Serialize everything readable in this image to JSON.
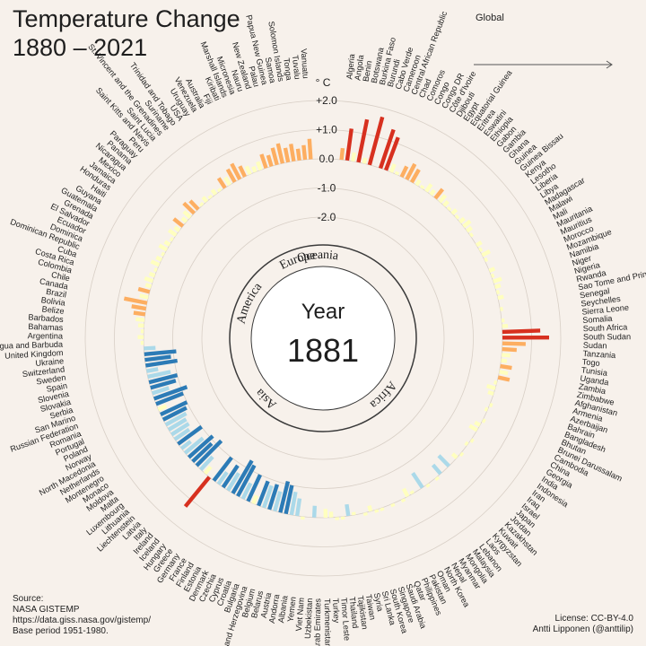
{
  "title_line1": "Temperature Change",
  "title_line2": "1880 – 2021",
  "global_label": "Global",
  "unit_label": "° C",
  "scale_ticks": [
    "+2.0",
    "+1.0",
    "0.0",
    "-1.0",
    "-2.0"
  ],
  "center_label": "Year",
  "center_year": "1881",
  "continents": [
    "Oceania",
    "Africa",
    "Asia",
    "Europe",
    "America"
  ],
  "source": {
    "heading": "Source:",
    "org": "NASA GISTEMP",
    "url": "https://data.giss.nasa.gov/gistemp/",
    "base": "Base period 1951-1980."
  },
  "license": {
    "line1": "License: CC-BY-4.0",
    "line2": "Antti Lipponen (@anttilip)"
  },
  "colors": {
    "background": "#f7f1eb",
    "warm_dark": "#d7301f",
    "warm": "#fdae61",
    "neutral": "#ffffbf",
    "cool": "#abd9e9",
    "cool_dark": "#2c7bb6",
    "global_arrow": "#555555"
  },
  "chart_data": {
    "type": "radial-bar",
    "year": 1881,
    "unit": "°C",
    "ylim": [
      -2.0,
      2.0
    ],
    "countries": [
      {
        "name": "Algeria",
        "value": 0.4
      },
      {
        "name": "Angola",
        "value": 1.1
      },
      {
        "name": "Benin",
        "value": 0.3
      },
      {
        "name": "Botswana",
        "value": 1.5
      },
      {
        "name": "Burkina Faso",
        "value": 0.2
      },
      {
        "name": "Burundi",
        "value": 1.7
      },
      {
        "name": "Cabo Verde",
        "value": 0.0
      },
      {
        "name": "Cameroon",
        "value": 1.4
      },
      {
        "name": "Central African Republic",
        "value": 1.2
      },
      {
        "name": "Chad",
        "value": 0.3
      },
      {
        "name": "Comoros",
        "value": 0.1
      },
      {
        "name": "Congo",
        "value": 0.4
      },
      {
        "name": "Congo DR",
        "value": 0.6
      },
      {
        "name": "Côte d'Ivoire",
        "value": 0.5
      },
      {
        "name": "Djibouti",
        "value": 0.2
      },
      {
        "name": "Egypt",
        "value": 0.1
      },
      {
        "name": "Equatorial Guinea",
        "value": 0.3
      },
      {
        "name": "Eritrea",
        "value": 0.2
      },
      {
        "name": "Eswatini",
        "value": 0.4
      },
      {
        "name": "Ethiopia",
        "value": 0.3
      },
      {
        "name": "Gabon",
        "value": 0.2
      },
      {
        "name": "Gambia",
        "value": 0.1
      },
      {
        "name": "Ghana",
        "value": 0.2
      },
      {
        "name": "Guinea",
        "value": 0.1
      },
      {
        "name": "Guinea Bissau",
        "value": 0.2
      },
      {
        "name": "Kenya",
        "value": 0.3
      },
      {
        "name": "Lesotho",
        "value": 0.2
      },
      {
        "name": "Liberia",
        "value": 0.1
      },
      {
        "name": "Libya",
        "value": 0.0
      },
      {
        "name": "Madagascar",
        "value": 0.2
      },
      {
        "name": "Malawi",
        "value": 0.1
      },
      {
        "name": "Mali",
        "value": 0.3
      },
      {
        "name": "Mauritania",
        "value": 0.1
      },
      {
        "name": "Mauritius",
        "value": 0.0
      },
      {
        "name": "Morocco",
        "value": 0.2
      },
      {
        "name": "Mozambique",
        "value": 0.1
      },
      {
        "name": "Namibia",
        "value": 0.3
      },
      {
        "name": "Niger",
        "value": 0.2
      },
      {
        "name": "Nigeria",
        "value": 0.1
      },
      {
        "name": "Rwanda",
        "value": 0.2
      },
      {
        "name": "Sao Tome and Principe",
        "value": 0.0
      },
      {
        "name": "Senegal",
        "value": 0.1
      },
      {
        "name": "Seychelles",
        "value": 0.0
      },
      {
        "name": "Sierra Leone",
        "value": 0.1
      },
      {
        "name": "Somalia",
        "value": 0.2
      },
      {
        "name": "South Africa",
        "value": 1.3
      },
      {
        "name": "South Sudan",
        "value": 1.6
      },
      {
        "name": "Sudan",
        "value": 0.8
      },
      {
        "name": "Tanzania",
        "value": 0.5
      },
      {
        "name": "Togo",
        "value": 0.3
      },
      {
        "name": "Tunisia",
        "value": 0.2
      },
      {
        "name": "Uganda",
        "value": 0.4
      },
      {
        "name": "Zambia",
        "value": 0.3
      },
      {
        "name": "Zimbabwe",
        "value": 0.4
      },
      {
        "name": "Afghanistan",
        "value": -0.1
      },
      {
        "name": "Armenia",
        "value": -0.3
      },
      {
        "name": "Azerbaijan",
        "value": -0.2
      },
      {
        "name": "Bahrain",
        "value": 0.0
      },
      {
        "name": "Bangladesh",
        "value": 0.1
      },
      {
        "name": "Bhutan",
        "value": -0.1
      },
      {
        "name": "Brunei Darussalam",
        "value": 0.0
      },
      {
        "name": "Cambodia",
        "value": 0.1
      },
      {
        "name": "China",
        "value": -0.2
      },
      {
        "name": "Georgia",
        "value": -0.3
      },
      {
        "name": "India",
        "value": 0.0
      },
      {
        "name": "Indonesia",
        "value": 0.1
      },
      {
        "name": "Iran",
        "value": -0.1
      },
      {
        "name": "Iraq",
        "value": 0.0
      },
      {
        "name": "Israel",
        "value": 0.1
      },
      {
        "name": "Japan",
        "value": -0.2
      },
      {
        "name": "Jordan",
        "value": 0.0
      },
      {
        "name": "Kazakhstan",
        "value": -0.5
      },
      {
        "name": "Kuwait",
        "value": 0.0
      },
      {
        "name": "Kyrgyzstan",
        "value": -0.4
      },
      {
        "name": "Laos",
        "value": 0.1
      },
      {
        "name": "Lebanon",
        "value": 0.0
      },
      {
        "name": "Malaysia",
        "value": 0.1
      },
      {
        "name": "Mongolia",
        "value": -0.6
      },
      {
        "name": "Myanmar",
        "value": 0.0
      },
      {
        "name": "Nepal",
        "value": -0.1
      },
      {
        "name": "North Korea",
        "value": -0.3
      },
      {
        "name": "Oman",
        "value": 0.1
      },
      {
        "name": "Pakistan",
        "value": 0.0
      },
      {
        "name": "Philippines",
        "value": 0.1
      },
      {
        "name": "Qatar",
        "value": 0.0
      },
      {
        "name": "Saudi Arabia",
        "value": 0.1
      },
      {
        "name": "Singapore",
        "value": 0.1
      },
      {
        "name": "South Korea",
        "value": -0.2
      },
      {
        "name": "Sri Lanka",
        "value": 0.1
      },
      {
        "name": "Syria",
        "value": 0.0
      },
      {
        "name": "Taiwan",
        "value": -0.1
      },
      {
        "name": "Tajikistan",
        "value": -0.4
      },
      {
        "name": "Thailand",
        "value": 0.1
      },
      {
        "name": "Timor Leste",
        "value": 0.1
      },
      {
        "name": "Turkey",
        "value": -0.2
      },
      {
        "name": "Turkmenistan",
        "value": -0.3
      },
      {
        "name": "United Arab Emirates",
        "value": 0.0
      },
      {
        "name": "Uzbekistan",
        "value": -0.4
      },
      {
        "name": "Viet Nam",
        "value": 0.0
      },
      {
        "name": "Yemen",
        "value": 0.1
      },
      {
        "name": "Albania",
        "value": -0.6
      },
      {
        "name": "Andorra",
        "value": -0.8
      },
      {
        "name": "Austria",
        "value": -1.0
      },
      {
        "name": "Belarus",
        "value": -1.1
      },
      {
        "name": "Belgium",
        "value": -0.7
      },
      {
        "name": "Bosnia and Herzegovina",
        "value": -0.9
      },
      {
        "name": "Bulgaria",
        "value": -0.8
      },
      {
        "name": "Croatia",
        "value": -0.9
      },
      {
        "name": "Cyprus",
        "value": -0.3
      },
      {
        "name": "Czechia",
        "value": -1.0
      },
      {
        "name": "Denmark",
        "value": -0.6
      },
      {
        "name": "Estonia",
        "value": -1.2
      },
      {
        "name": "Finland",
        "value": -1.3
      },
      {
        "name": "France",
        "value": -0.7
      },
      {
        "name": "Germany",
        "value": -0.9
      },
      {
        "name": "Greece",
        "value": -0.5
      },
      {
        "name": "Hungary",
        "value": -1.0
      },
      {
        "name": "Iceland",
        "value": 1.3
      },
      {
        "name": "Ireland",
        "value": -0.3
      },
      {
        "name": "Italy",
        "value": -0.6
      },
      {
        "name": "Latvia",
        "value": -1.2
      },
      {
        "name": "Liechtenstein",
        "value": -0.9
      },
      {
        "name": "Lithuania",
        "value": -1.1
      },
      {
        "name": "Luxembourg",
        "value": -0.8
      },
      {
        "name": "Malta",
        "value": -0.4
      },
      {
        "name": "Moldova",
        "value": -1.0
      },
      {
        "name": "Monaco",
        "value": -0.6
      },
      {
        "name": "Montenegro",
        "value": -0.7
      },
      {
        "name": "Netherlands",
        "value": -0.7
      },
      {
        "name": "North Macedonia",
        "value": -0.8
      },
      {
        "name": "Norway",
        "value": -0.9
      },
      {
        "name": "Poland",
        "value": -1.0
      },
      {
        "name": "Portugal",
        "value": -0.3
      },
      {
        "name": "Romania",
        "value": -1.0
      },
      {
        "name": "Russian Federation",
        "value": -1.2
      },
      {
        "name": "San Marino",
        "value": -0.6
      },
      {
        "name": "Serbia",
        "value": -0.9
      },
      {
        "name": "Slovakia",
        "value": -1.0
      },
      {
        "name": "Slovenia",
        "value": -0.8
      },
      {
        "name": "Spain",
        "value": -0.4
      },
      {
        "name": "Sweden",
        "value": -1.1
      },
      {
        "name": "Switzerland",
        "value": -0.9
      },
      {
        "name": "Ukraine",
        "value": -1.1
      },
      {
        "name": "United Kingdom",
        "value": -0.4
      },
      {
        "name": "Antigua and Barbuda",
        "value": 0.1
      },
      {
        "name": "Argentina",
        "value": 0.2
      },
      {
        "name": "Bahamas",
        "value": 0.1
      },
      {
        "name": "Barbados",
        "value": 0.2
      },
      {
        "name": "Belize",
        "value": 0.3
      },
      {
        "name": "Bolivia",
        "value": 0.4
      },
      {
        "name": "Brazil",
        "value": 0.5
      },
      {
        "name": "Canada",
        "value": 0.8
      },
      {
        "name": "Chile",
        "value": 0.3
      },
      {
        "name": "Colombia",
        "value": 0.4
      },
      {
        "name": "Costa Rica",
        "value": 0.2
      },
      {
        "name": "Cuba",
        "value": 0.3
      },
      {
        "name": "Dominican Republic",
        "value": 0.2
      },
      {
        "name": "Dominica",
        "value": 0.1
      },
      {
        "name": "Ecuador",
        "value": 0.3
      },
      {
        "name": "El Salvador",
        "value": 0.2
      },
      {
        "name": "Grenada",
        "value": 0.1
      },
      {
        "name": "Guatemala",
        "value": 0.3
      },
      {
        "name": "Guyana",
        "value": 0.2
      },
      {
        "name": "Haiti",
        "value": 0.1
      },
      {
        "name": "Honduras",
        "value": 0.3
      },
      {
        "name": "Jamaica",
        "value": 0.2
      },
      {
        "name": "Mexico",
        "value": 0.4
      },
      {
        "name": "Nicaragua",
        "value": 0.2
      },
      {
        "name": "Panama",
        "value": 0.3
      },
      {
        "name": "Paraguay",
        "value": 0.5
      },
      {
        "name": "Peru",
        "value": 0.4
      },
      {
        "name": "Saint Kitts and Nevis",
        "value": 0.1
      },
      {
        "name": "Saint Lucia",
        "value": 0.2
      },
      {
        "name": "St. Vincent and the Grenadines",
        "value": 0.1
      },
      {
        "name": "Suriname",
        "value": 0.2
      },
      {
        "name": "Trinidad and Tobago",
        "value": 0.1
      },
      {
        "name": "USA",
        "value": 0.4
      },
      {
        "name": "Uruguay",
        "value": 0.3
      },
      {
        "name": "Venezuela",
        "value": 0.5
      },
      {
        "name": "Australia",
        "value": 0.6
      },
      {
        "name": "Fiji",
        "value": 0.4
      },
      {
        "name": "Kiribati",
        "value": 0.3
      },
      {
        "name": "Marshall Islands",
        "value": 0.2
      },
      {
        "name": "Micronesia",
        "value": 0.3
      },
      {
        "name": "Nauru",
        "value": 0.5
      },
      {
        "name": "New Zealand",
        "value": 0.4
      },
      {
        "name": "Palau",
        "value": 0.6
      },
      {
        "name": "Papua New Guinea",
        "value": 0.7
      },
      {
        "name": "Samoa",
        "value": 0.5
      },
      {
        "name": "Solomon Islands",
        "value": 0.6
      },
      {
        "name": "Tonga",
        "value": 0.4
      },
      {
        "name": "Tuvalu",
        "value": 0.5
      },
      {
        "name": "Vanuatu",
        "value": 0.7
      }
    ]
  }
}
